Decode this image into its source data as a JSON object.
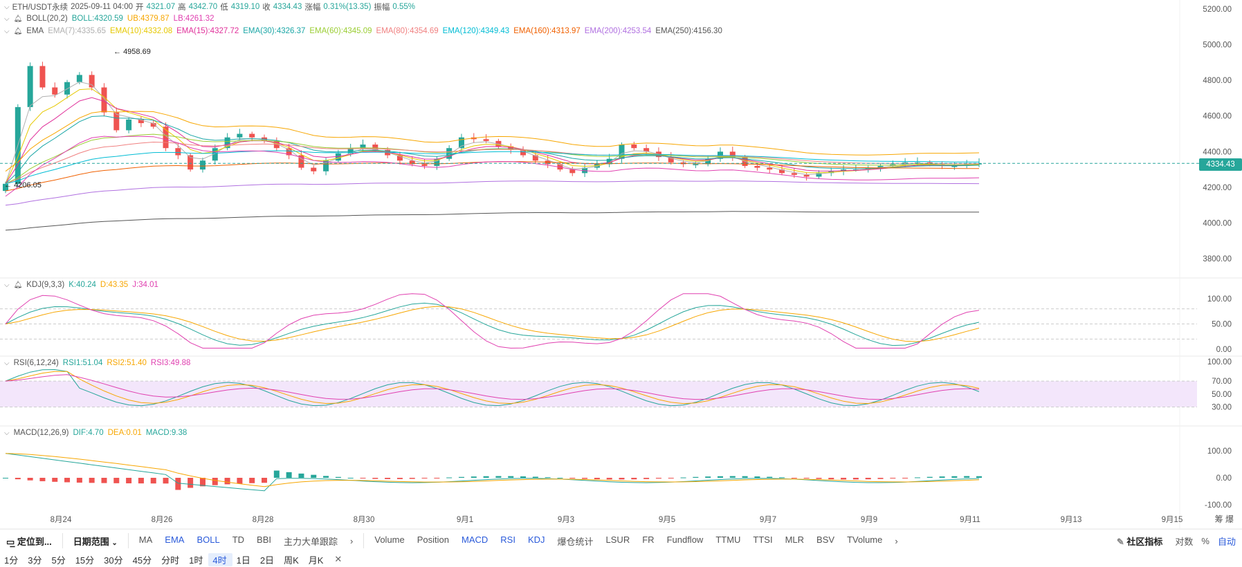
{
  "header": {
    "symbol": "ETH/USDT永续",
    "time": "2025-09-11 04:00",
    "open_label": "开",
    "open": "4321.07",
    "high_label": "高",
    "high": "4342.70",
    "low_label": "低",
    "low": "4319.10",
    "close_label": "收",
    "close": "4334.43",
    "change_label": "涨幅",
    "change": "0.31%(13.35)",
    "amp_label": "振幅",
    "amp": "0.55%"
  },
  "indicators": {
    "boll": {
      "name": "BOLL(20,2)",
      "vals": [
        {
          "text": "BOLL:4320.59",
          "color": "#26a69a"
        },
        {
          "text": "UB:4379.87",
          "color": "#f7a600"
        },
        {
          "text": "LB:4261.32",
          "color": "#e040b0"
        }
      ]
    },
    "ema": {
      "name": "EMA",
      "vals": [
        {
          "text": "EMA(7):4335.65",
          "color": "#b0b0b0"
        },
        {
          "text": "EMA(10):4332.08",
          "color": "#e6c800"
        },
        {
          "text": "EMA(15):4327.72",
          "color": "#e0309a"
        },
        {
          "text": "EMA(30):4326.37",
          "color": "#1aa6a6"
        },
        {
          "text": "EMA(60):4345.09",
          "color": "#9acd32"
        },
        {
          "text": "EMA(80):4354.69",
          "color": "#f08080"
        },
        {
          "text": "EMA(120):4349.43",
          "color": "#00bcd4"
        },
        {
          "text": "EMA(160):4313.97",
          "color": "#f06000"
        },
        {
          "text": "EMA(200):4253.54",
          "color": "#b070e0"
        },
        {
          "text": "EMA(250):4156.30",
          "color": "#555555"
        }
      ]
    },
    "kdj": {
      "name": "KDJ(9,3,3)",
      "vals": [
        {
          "text": "K:40.24",
          "color": "#26a69a"
        },
        {
          "text": "D:43.35",
          "color": "#f7a600"
        },
        {
          "text": "J:34.01",
          "color": "#e040b0"
        }
      ]
    },
    "rsi": {
      "name": "RSI(6,12,24)",
      "vals": [
        {
          "text": "RSI1:51.04",
          "color": "#26a69a"
        },
        {
          "text": "RSI2:51.40",
          "color": "#f7a600"
        },
        {
          "text": "RSI3:49.88",
          "color": "#e040b0"
        }
      ]
    },
    "macd": {
      "name": "MACD(12,26,9)",
      "vals": [
        {
          "text": "DIF:4.70",
          "color": "#26a69a"
        },
        {
          "text": "DEA:0.01",
          "color": "#f7a600"
        },
        {
          "text": "MACD:9.38",
          "color": "#26a69a"
        }
      ]
    }
  },
  "markers": {
    "high": "4958.69",
    "low": "4206.05"
  },
  "last_price": "4334.43",
  "axes": {
    "price_ticks": [
      "5200.00",
      "5000.00",
      "4800.00",
      "4600.00",
      "4400.00",
      "4200.00",
      "4000.00",
      "3800.00"
    ],
    "kdj_ticks": [
      "100.00",
      "50.00",
      "0.00"
    ],
    "rsi_ticks": [
      "100.00",
      "70.00",
      "50.00",
      "30.00"
    ],
    "macd_ticks": [
      "100.00",
      "0.00",
      "-100.00"
    ],
    "date_ticks": [
      "8月24",
      "8月26",
      "8月28",
      "8月30",
      "9月1",
      "9月3",
      "9月5",
      "9月7",
      "9月9",
      "9月11",
      "9月13",
      "9月15"
    ]
  },
  "toolbar": {
    "locate": "定位到...",
    "range": "日期范围",
    "main_inds": [
      "MA",
      "EMA",
      "BOLL",
      "TD",
      "BBI",
      "主力大单跟踪"
    ],
    "sub_inds": [
      "Volume",
      "Position",
      "MACD",
      "RSI",
      "KDJ",
      "爆仓统计",
      "LSUR",
      "FR",
      "Fundflow",
      "TTMU",
      "TTSI",
      "MLR",
      "BSV",
      "TVolume"
    ],
    "community": "社区指标",
    "log": "对数",
    "pct": "%",
    "auto": "自动",
    "corner": "筹 爆"
  },
  "intervals": [
    "1分",
    "3分",
    "5分",
    "15分",
    "30分",
    "45分",
    "分时",
    "1时",
    "4时",
    "1日",
    "2日",
    "周K",
    "月K"
  ],
  "active_interval": "4时",
  "colors": {
    "up": "#26a69a",
    "down": "#ef5350",
    "accent": "#2a5ada"
  },
  "chart_data": [
    {
      "type": "candlestick",
      "title": "ETH/USDT永续 4时",
      "x": [
        "8月24",
        "8月26",
        "8月28",
        "8月30",
        "9月1",
        "9月3",
        "9月5",
        "9月7",
        "9月9",
        "9月11"
      ],
      "ylim": [
        3700,
        5250
      ],
      "close_series": [
        4220,
        4650,
        4880,
        4760,
        4720,
        4790,
        4830,
        4760,
        4620,
        4520,
        4580,
        4560,
        4540,
        4420,
        4380,
        4300,
        4350,
        4420,
        4480,
        4500,
        4480,
        4460,
        4420,
        4380,
        4310,
        4290,
        4350,
        4390,
        4420,
        4440,
        4410,
        4380,
        4350,
        4330,
        4320,
        4360,
        4420,
        4480,
        4470,
        4460,
        4430,
        4410,
        4380,
        4350,
        4330,
        4300,
        4280,
        4310,
        4330,
        4360,
        4440,
        4420,
        4400,
        4370,
        4340,
        4330,
        4330,
        4360,
        4400,
        4370,
        4320,
        4310,
        4300,
        4280,
        4270,
        4260,
        4280,
        4290,
        4300,
        4300,
        4310,
        4320,
        4330,
        4340,
        4340,
        4330,
        4320,
        4320,
        4330,
        4334.43
      ],
      "high_marker": 4958.69,
      "low_marker": 4206.05,
      "last": 4334.43
    },
    {
      "type": "line",
      "title": "KDJ(9,3,3)",
      "ylim": [
        0,
        100
      ],
      "series": [
        {
          "name": "K"
        },
        {
          "name": "D"
        },
        {
          "name": "J"
        }
      ]
    },
    {
      "type": "line",
      "title": "RSI(6,12,24)",
      "ylim": [
        20,
        100
      ]
    },
    {
      "type": "bar",
      "title": "MACD(12,26,9)",
      "ylim": [
        -110,
        130
      ]
    }
  ]
}
